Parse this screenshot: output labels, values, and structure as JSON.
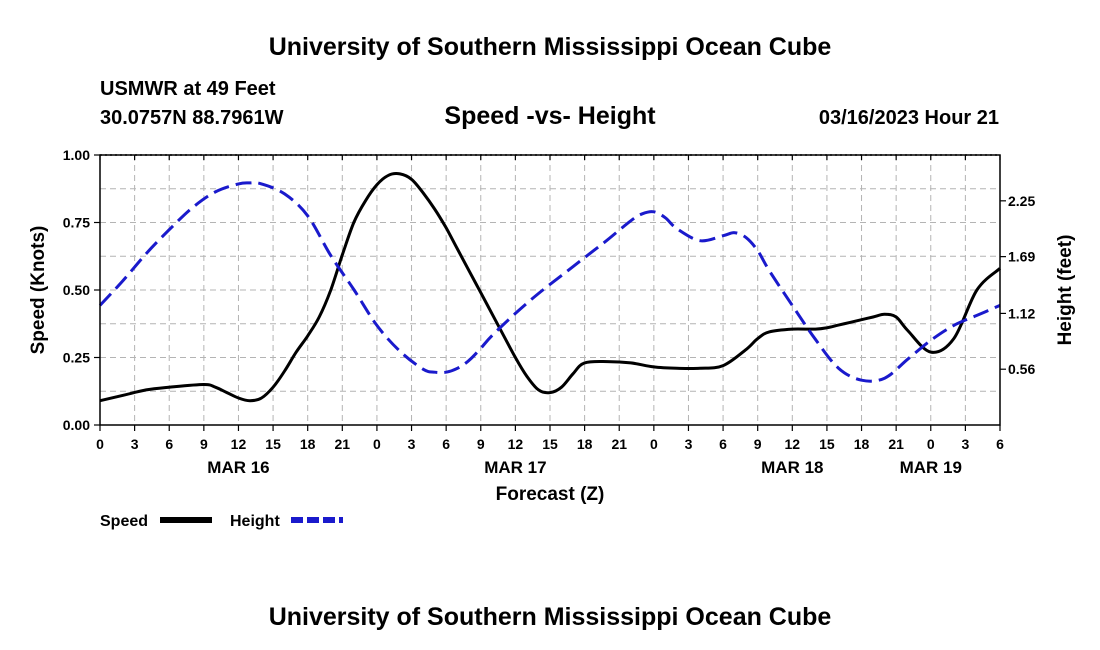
{
  "header": {
    "title": "University of Southern Mississippi Ocean Cube",
    "station": "USMWR at 49 Feet",
    "coords": "30.0757N  88.7961W",
    "datetime": "03/16/2023 Hour 21"
  },
  "footer": {
    "title": "University of Southern Mississippi Ocean Cube"
  },
  "colors": {
    "speed": "#000000",
    "height": "#1a1acc",
    "grid": "#b4b4b4"
  },
  "chart_data": {
    "type": "line",
    "title": "Speed -vs- Height",
    "xlabel": "Forecast (Z)",
    "ylabel": "Speed (Knots)",
    "y2label": "Height (feet)",
    "xlim": [
      0,
      78
    ],
    "ylim": [
      0,
      1.0
    ],
    "y2lim": [
      0.0,
      2.71
    ],
    "x_tick_labels": [
      "0",
      "3",
      "6",
      "9",
      "12",
      "15",
      "18",
      "21",
      "0",
      "3",
      "6",
      "9",
      "12",
      "15",
      "18",
      "21",
      "0",
      "3",
      "6",
      "9",
      "12",
      "15",
      "18",
      "21",
      "0",
      "3",
      "6"
    ],
    "y_ticks": [
      "0.00",
      "0.25",
      "0.50",
      "0.75",
      "1.00"
    ],
    "y2_ticks": [
      "0.56",
      "1.12",
      "1.69",
      "2.25"
    ],
    "date_labels": [
      {
        "label": "MAR 16",
        "x": 12
      },
      {
        "label": "MAR 17",
        "x": 36
      },
      {
        "label": "MAR 18",
        "x": 60
      },
      {
        "label": "MAR 19",
        "x": 72
      }
    ],
    "series": [
      {
        "name": "Speed",
        "axis": "left",
        "style": "solid",
        "x": [
          0,
          2,
          4,
          6,
          9,
          10,
          11,
          12,
          13,
          14,
          15,
          16,
          17,
          18,
          19,
          20,
          21,
          22,
          23,
          24,
          25,
          26,
          27,
          28,
          29,
          30,
          31,
          32,
          33,
          34,
          35,
          36,
          37,
          38,
          39,
          40,
          41,
          42,
          44,
          46,
          48,
          50,
          52,
          54,
          56,
          57,
          58,
          60,
          62,
          63,
          64,
          65,
          66,
          67,
          68,
          69,
          70,
          72,
          74,
          76,
          78
        ],
        "values": [
          0.09,
          0.11,
          0.13,
          0.14,
          0.15,
          0.14,
          0.12,
          0.1,
          0.09,
          0.1,
          0.14,
          0.2,
          0.27,
          0.33,
          0.4,
          0.5,
          0.63,
          0.75,
          0.83,
          0.89,
          0.925,
          0.93,
          0.91,
          0.86,
          0.8,
          0.73,
          0.65,
          0.57,
          0.49,
          0.41,
          0.33,
          0.25,
          0.18,
          0.13,
          0.12,
          0.14,
          0.19,
          0.23,
          0.235,
          0.23,
          0.215,
          0.21,
          0.21,
          0.22,
          0.28,
          0.32,
          0.345,
          0.355,
          0.355,
          0.36,
          0.37,
          0.38,
          0.39,
          0.4,
          0.41,
          0.4,
          0.35,
          0.27,
          0.32,
          0.5,
          0.58
        ]
      },
      {
        "name": "Height",
        "axis": "right",
        "style": "dashed",
        "x": [
          0,
          2,
          4,
          6,
          8,
          10,
          12,
          13,
          14,
          16,
          18,
          20,
          22,
          24,
          26,
          28,
          29,
          30,
          31,
          32,
          33,
          34,
          36,
          38,
          40,
          42,
          44,
          46,
          47,
          48,
          49,
          50,
          52,
          54,
          55,
          56,
          57,
          58,
          60,
          62,
          64,
          66,
          68,
          70,
          72,
          74,
          76,
          78
        ],
        "values": [
          1.2,
          1.45,
          1.72,
          1.96,
          2.18,
          2.34,
          2.42,
          2.43,
          2.42,
          2.32,
          2.1,
          1.7,
          1.36,
          1.0,
          0.74,
          0.56,
          0.53,
          0.53,
          0.57,
          0.65,
          0.77,
          0.9,
          1.12,
          1.32,
          1.5,
          1.68,
          1.86,
          2.05,
          2.12,
          2.14,
          2.08,
          1.97,
          1.85,
          1.9,
          1.93,
          1.88,
          1.75,
          1.55,
          1.2,
          0.86,
          0.57,
          0.45,
          0.47,
          0.66,
          0.85,
          1.0,
          1.1,
          1.2
        ]
      }
    ],
    "legend": {
      "position": "bottom-left",
      "entries": [
        {
          "label": "Speed",
          "style": "solid"
        },
        {
          "label": "Height",
          "style": "dashed"
        }
      ]
    }
  }
}
